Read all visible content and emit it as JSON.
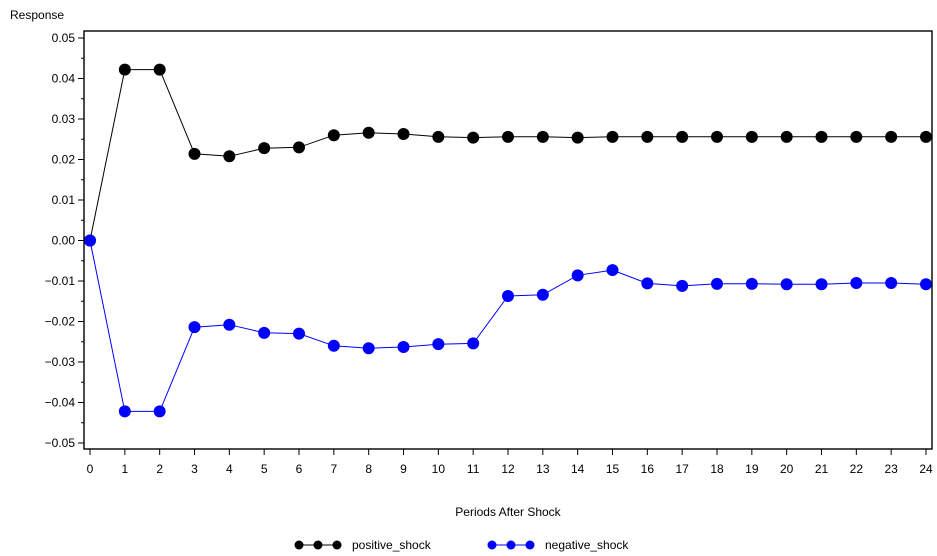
{
  "chart_data": {
    "type": "line",
    "title": "",
    "xlabel": "Periods After Shock",
    "ylabel": "Response",
    "xlim": [
      0,
      24
    ],
    "ylim": [
      -0.05,
      0.05
    ],
    "x_ticks": [
      0,
      1,
      2,
      3,
      4,
      5,
      6,
      7,
      8,
      9,
      10,
      11,
      12,
      13,
      14,
      15,
      16,
      17,
      18,
      19,
      20,
      21,
      22,
      23,
      24
    ],
    "y_ticks": [
      0.05,
      0.04,
      0.03,
      0.02,
      0.01,
      0.0,
      -0.01,
      -0.02,
      -0.03,
      -0.04,
      -0.05
    ],
    "y_tick_labels": [
      "0.05",
      "0.04",
      "0.03",
      "0.02",
      "0.01",
      "0.00",
      "−0.01",
      "−0.02",
      "−0.03",
      "−0.04",
      "−0.05"
    ],
    "grid": false,
    "legend_position": "bottom-center",
    "x": [
      0,
      1,
      2,
      3,
      4,
      5,
      6,
      7,
      8,
      9,
      10,
      11,
      12,
      13,
      14,
      15,
      16,
      17,
      18,
      19,
      20,
      21,
      22,
      23,
      24
    ],
    "series": [
      {
        "name": "positive_shock",
        "color": "#000000",
        "values": [
          0.0,
          0.0422,
          0.0422,
          0.0214,
          0.0208,
          0.0228,
          0.023,
          0.026,
          0.0266,
          0.0263,
          0.0256,
          0.0254,
          0.0256,
          0.0256,
          0.0254,
          0.0256,
          0.0256,
          0.0256,
          0.0256,
          0.0256,
          0.0256,
          0.0256,
          0.0256,
          0.0256,
          0.0256
        ]
      },
      {
        "name": "negative_shock",
        "color": "#0000ff",
        "values": [
          0.0,
          -0.0422,
          -0.0422,
          -0.0214,
          -0.0208,
          -0.0228,
          -0.023,
          -0.026,
          -0.0266,
          -0.0263,
          -0.0256,
          -0.0254,
          -0.0137,
          -0.0134,
          -0.0086,
          -0.0073,
          -0.0106,
          -0.0112,
          -0.0107,
          -0.0107,
          -0.0108,
          -0.0108,
          -0.0105,
          -0.0105,
          -0.0108
        ]
      }
    ]
  }
}
